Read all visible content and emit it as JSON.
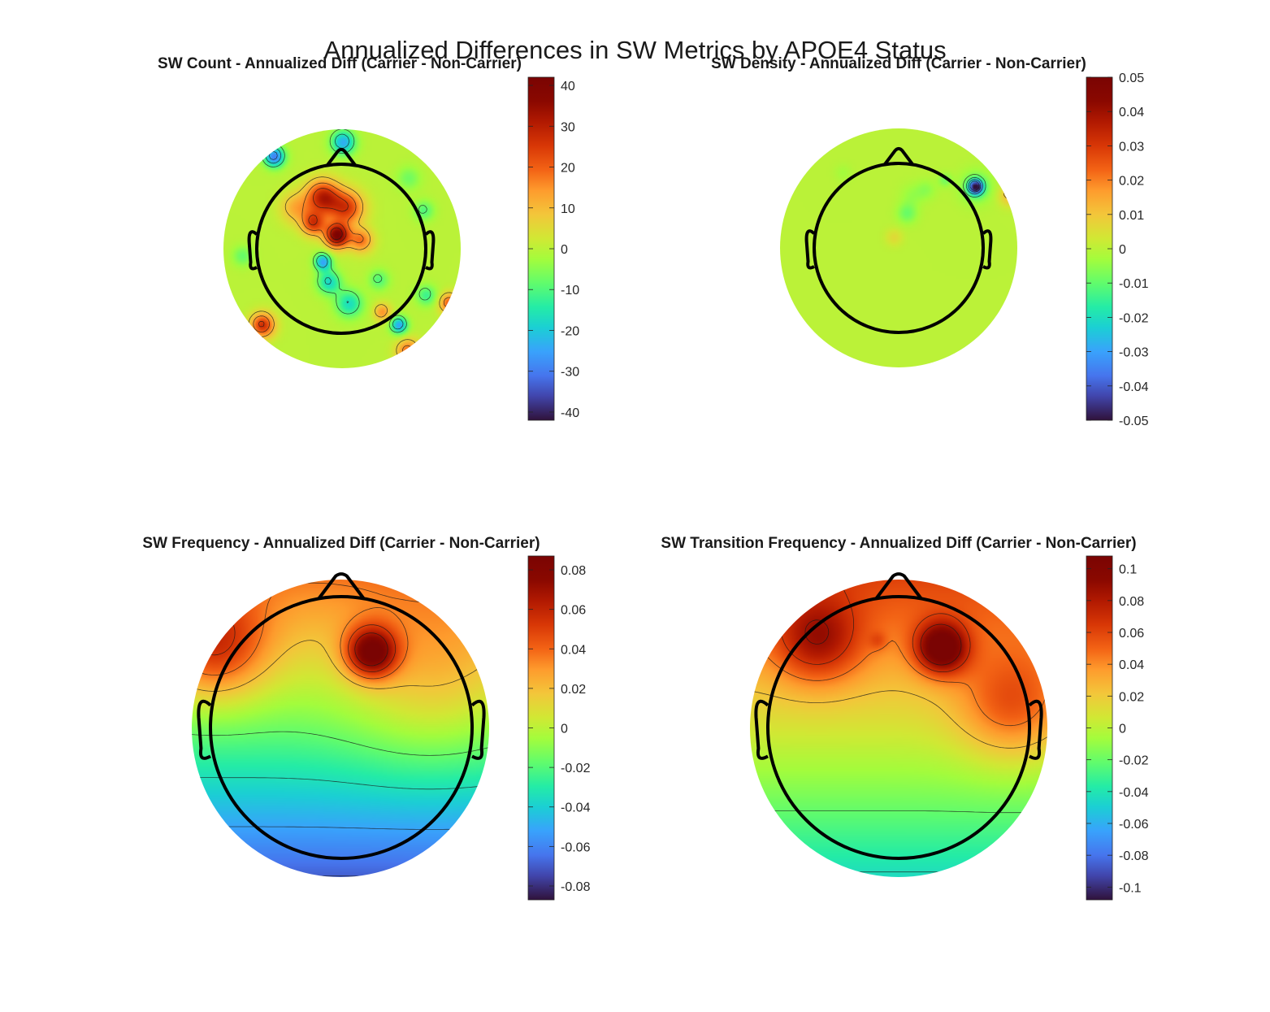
{
  "figure_title": "Annualized Differences in SW Metrics by APOE4 Status",
  "chart_data": [
    {
      "type": "heatmap",
      "subtype": "eeg-topoplot",
      "title": "SW Count - Annualized Diff (Carrier - Non-Carrier)",
      "colormap": "turbo",
      "clim": [
        -42,
        42
      ],
      "colorbar_ticks": [
        40,
        30,
        20,
        10,
        0,
        -10,
        -20,
        -30,
        -40
      ],
      "colorbar_tick_labels": [
        "40",
        "30",
        "20",
        "10",
        "0",
        "-10",
        "-20",
        "-30",
        "-40"
      ],
      "contours": true,
      "head_outline": true,
      "sources": [
        {
          "x": -0.05,
          "y": 0.12,
          "v": 40,
          "s": 0.07
        },
        {
          "x": -0.17,
          "y": 0.44,
          "v": 30,
          "s": 0.1
        },
        {
          "x": 0.03,
          "y": 0.35,
          "v": 24,
          "s": 0.1
        },
        {
          "x": -0.25,
          "y": 0.22,
          "v": 24,
          "s": 0.07
        },
        {
          "x": 0.15,
          "y": 0.08,
          "v": 18,
          "s": 0.07
        },
        {
          "x": -0.4,
          "y": 0.35,
          "v": 12,
          "s": 0.09
        },
        {
          "x": -0.68,
          "y": -0.63,
          "v": 27,
          "s": 0.07
        },
        {
          "x": 0.9,
          "y": -0.45,
          "v": 22,
          "s": 0.06
        },
        {
          "x": 0.55,
          "y": -0.85,
          "v": 20,
          "s": 0.07
        },
        {
          "x": 0.33,
          "y": -0.52,
          "v": 15,
          "s": 0.05
        },
        {
          "x": -0.58,
          "y": 0.78,
          "v": -30,
          "s": 0.06
        },
        {
          "x": 0.0,
          "y": 0.9,
          "v": -24,
          "s": 0.07
        },
        {
          "x": -0.17,
          "y": -0.1,
          "v": -25,
          "s": 0.05
        },
        {
          "x": -0.12,
          "y": -0.27,
          "v": -18,
          "s": 0.07
        },
        {
          "x": 0.05,
          "y": -0.45,
          "v": -17,
          "s": 0.08
        },
        {
          "x": 0.47,
          "y": -0.63,
          "v": -25,
          "s": 0.05
        },
        {
          "x": 0.7,
          "y": -0.38,
          "v": -12,
          "s": 0.06
        },
        {
          "x": 0.68,
          "y": 0.33,
          "v": -10,
          "s": 0.06
        },
        {
          "x": -0.85,
          "y": -0.05,
          "v": -8,
          "s": 0.06
        },
        {
          "x": 0.55,
          "y": 0.6,
          "v": -7,
          "s": 0.07
        },
        {
          "x": 0.3,
          "y": -0.25,
          "v": -10,
          "s": 0.06
        }
      ]
    },
    {
      "type": "heatmap",
      "subtype": "eeg-topoplot",
      "title": "SW Density - Annualized Diff (Carrier - Non-Carrier)",
      "colormap": "turbo",
      "clim": [
        -0.05,
        0.05
      ],
      "colorbar_ticks": [
        0.05,
        0.04,
        0.03,
        0.02,
        0.01,
        0,
        -0.01,
        -0.02,
        -0.03,
        -0.04,
        -0.05
      ],
      "colorbar_tick_labels": [
        "0.05",
        "0.04",
        "0.03",
        "0.02",
        "0.01",
        "0",
        "-0.01",
        "-0.02",
        "-0.03",
        "-0.04",
        "-0.05"
      ],
      "contours": true,
      "head_outline": true,
      "sources": [
        {
          "x": 0.64,
          "y": 0.52,
          "v": -0.048,
          "s": 0.04
        },
        {
          "x": 0.64,
          "y": 0.52,
          "v": -0.012,
          "s": 0.09
        },
        {
          "x": 0.22,
          "y": 0.5,
          "v": -0.005,
          "s": 0.06
        },
        {
          "x": 0.06,
          "y": 0.3,
          "v": -0.009,
          "s": 0.06
        },
        {
          "x": 0.1,
          "y": 0.45,
          "v": -0.004,
          "s": 0.07
        },
        {
          "x": -0.05,
          "y": 0.1,
          "v": 0.006,
          "s": 0.05
        },
        {
          "x": -0.48,
          "y": 0.64,
          "v": -0.003,
          "s": 0.05
        },
        {
          "x": 0.92,
          "y": 0.45,
          "v": 0.012,
          "s": 0.06
        },
        {
          "x": 0.38,
          "y": 0.58,
          "v": -0.008,
          "s": 0.04
        }
      ]
    },
    {
      "type": "heatmap",
      "subtype": "eeg-topoplot",
      "title": "SW Frequency - Annualized Diff (Carrier - Non-Carrier)",
      "colormap": "turbo",
      "clim": [
        -0.087,
        0.087
      ],
      "colorbar_ticks": [
        0.08,
        0.06,
        0.04,
        0.02,
        0,
        -0.02,
        -0.04,
        -0.06,
        -0.08
      ],
      "colorbar_tick_labels": [
        "0.08",
        "0.06",
        "0.04",
        "0.02",
        "0",
        "-0.02",
        "-0.04",
        "-0.06",
        "-0.08"
      ],
      "contours": true,
      "head_outline": true,
      "sources": [
        {
          "x": 0.2,
          "y": 0.52,
          "v": 0.075,
          "s": 0.12
        },
        {
          "x": -0.85,
          "y": 0.55,
          "v": 0.045,
          "s": 0.25
        },
        {
          "x": 0.6,
          "y": 0.3,
          "v": 0.02,
          "s": 0.4
        }
      ],
      "gradient": {
        "top": 0.035,
        "bottom": -0.07
      }
    },
    {
      "type": "heatmap",
      "subtype": "eeg-topoplot",
      "title": "SW Transition Frequency - Annualized Diff (Carrier - Non-Carrier)",
      "colormap": "turbo",
      "clim": [
        -0.108,
        0.108
      ],
      "colorbar_ticks": [
        0.1,
        0.08,
        0.06,
        0.04,
        0.02,
        0,
        -0.02,
        -0.04,
        -0.06,
        -0.08,
        -0.1
      ],
      "colorbar_tick_labels": [
        "0.1",
        "0.08",
        "0.06",
        "0.04",
        "0.02",
        "0",
        "-0.02",
        "-0.04",
        "-0.06",
        "-0.08",
        "-0.1"
      ],
      "contours": true,
      "head_outline": true,
      "sources": [
        {
          "x": 0.28,
          "y": 0.55,
          "v": 0.09,
          "s": 0.12
        },
        {
          "x": -0.55,
          "y": 0.6,
          "v": 0.05,
          "s": 0.2
        },
        {
          "x": 0.75,
          "y": 0.15,
          "v": 0.04,
          "s": 0.25
        },
        {
          "x": -0.15,
          "y": 0.6,
          "v": 0.015,
          "s": 0.04
        }
      ],
      "gradient": {
        "top": 0.06,
        "bottom": -0.045
      }
    }
  ]
}
